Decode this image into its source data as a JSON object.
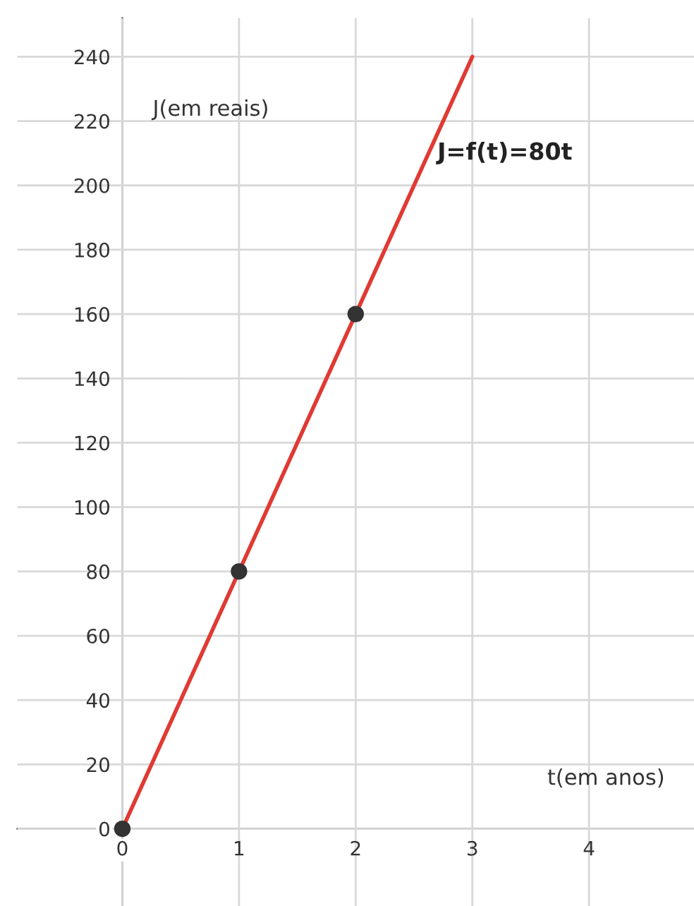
{
  "chart_data": {
    "type": "line",
    "xlabel": "t(em anos)",
    "ylabel": "J(em reais)",
    "series": [
      {
        "name": "J=f(t)=80t",
        "color": "#e03a33",
        "x": [
          0,
          1,
          2,
          3
        ],
        "values": [
          0,
          80,
          160,
          240
        ],
        "marker": "none"
      },
      {
        "type": "scatter",
        "color": "#333333",
        "x": [
          0,
          1,
          2
        ],
        "values": [
          0,
          80,
          160
        ],
        "marker": "circle"
      }
    ],
    "xlim": [
      -0.9,
      4.9
    ],
    "ylim": [
      -24,
      252
    ],
    "xticks": [
      0,
      1,
      2,
      3,
      4
    ],
    "yticks": [
      0,
      20,
      40,
      60,
      80,
      100,
      120,
      140,
      160,
      180,
      200,
      220,
      240
    ],
    "grid": true,
    "legend": false
  }
}
